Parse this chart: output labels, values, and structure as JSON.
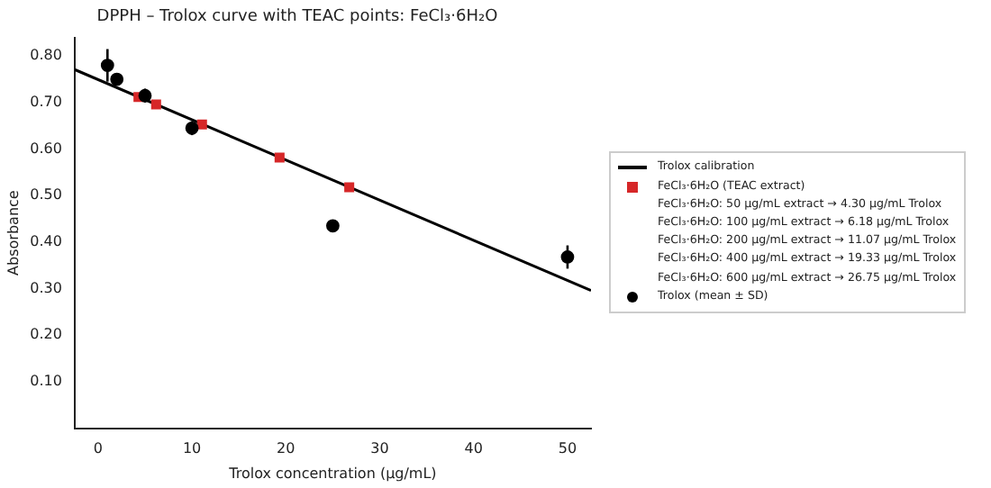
{
  "chart_data": {
    "type": "scatter",
    "title": "DPPH – Trolox curve with TEAC points: FeCl₃·6H₂O",
    "xlabel": "Trolox concentration (µg/mL)",
    "ylabel": "Absorbance",
    "xlim": [
      -2.5,
      52.5
    ],
    "xticks": [
      0,
      10,
      20,
      30,
      40,
      50
    ],
    "ylim": [
      0,
      0.84
    ],
    "yticks": [
      {
        "value": 0.1,
        "label": "0.10"
      },
      {
        "value": 0.2,
        "label": "0.20"
      },
      {
        "value": 0.3,
        "label": "0.30"
      },
      {
        "value": 0.4,
        "label": "0.40"
      },
      {
        "value": 0.5,
        "label": "0.50"
      },
      {
        "value": 0.6,
        "label": "0.60"
      },
      {
        "value": 0.7,
        "label": "0.70"
      },
      {
        "value": 0.8,
        "label": "0.80"
      }
    ],
    "grid": false,
    "legend": "right",
    "series": [
      {
        "name": "Trolox calibration",
        "type": "line",
        "color": "#000000",
        "marker": "none",
        "x": [
          -2.5,
          52.5
        ],
        "values": [
          0.771,
          0.296
        ]
      },
      {
        "name": "FeCl₃·6H₂O (TEAC extract)",
        "color": "#d62728",
        "marker": "square",
        "x": [
          4.3,
          6.18,
          11.07,
          19.33,
          26.75
        ],
        "values": [
          0.712,
          0.696,
          0.653,
          0.582,
          0.518
        ]
      },
      {
        "name": "Trolox (mean ± SD)",
        "color": "#000000",
        "marker": "circle",
        "x": [
          1,
          2,
          5,
          10,
          25,
          50
        ],
        "values": [
          0.78,
          0.75,
          0.715,
          0.645,
          0.435,
          0.368
        ],
        "errors": [
          0.035,
          0.01,
          0.015,
          0.015,
          null,
          0.025
        ]
      }
    ],
    "annotations": [
      "FeCl₃·6H₂O: 50 µg/mL extract → 4.30 µg/mL Trolox",
      "FeCl₃·6H₂O: 100 µg/mL extract → 6.18 µg/mL Trolox",
      "FeCl₃·6H₂O: 200 µg/mL extract → 11.07 µg/mL Trolox",
      "FeCl₃·6H₂O: 400 µg/mL extract → 19.33 µg/mL Trolox",
      "FeCl₃·6H₂O: 600 µg/mL extract → 26.75 µg/mL Trolox"
    ]
  }
}
